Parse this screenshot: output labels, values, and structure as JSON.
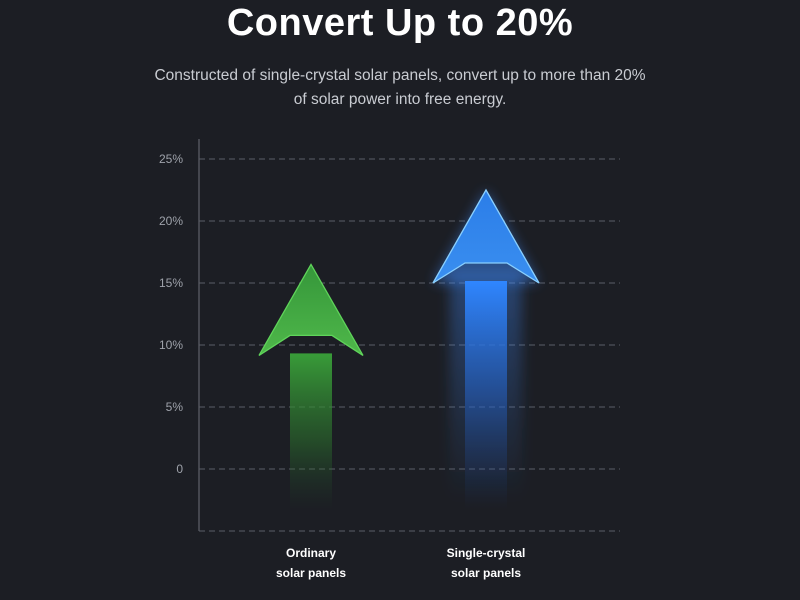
{
  "header": {
    "title": "Convert Up to 20%",
    "subtitle": "Constructed of single-crystal solar panels, convert up to more than 20% of solar power into free energy."
  },
  "chart_data": {
    "type": "bar",
    "categories": [
      "Ordinary solar panels",
      "Single-crystal solar panels"
    ],
    "category_lines": [
      [
        "Ordinary",
        "solar panels"
      ],
      [
        "Single-crystal",
        "solar panels"
      ]
    ],
    "values": [
      16.5,
      22.5
    ],
    "ylim": [
      -5,
      25
    ],
    "yticks": [
      0,
      5,
      10,
      15,
      20,
      25
    ],
    "ytick_labels": [
      "0",
      "5%",
      "10%",
      "15%",
      "20%",
      "25%"
    ],
    "grid": true,
    "colors": [
      "#3f9a3a",
      "#2f7fe6"
    ],
    "title": "",
    "xlabel": "",
    "ylabel": ""
  }
}
